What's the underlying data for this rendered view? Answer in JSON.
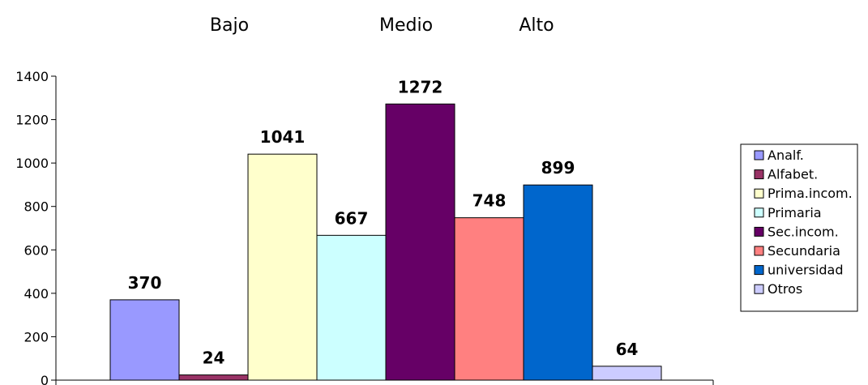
{
  "chart_data": {
    "type": "bar",
    "group_labels": [
      "Bajo",
      "Medio",
      "Alto"
    ],
    "series": [
      {
        "name": "Analf.",
        "value": 370,
        "color": "#9999ff"
      },
      {
        "name": "Alfabet.",
        "value": 24,
        "color": "#993366"
      },
      {
        "name": "Prima.incom.",
        "value": 1041,
        "color": "#ffffcc"
      },
      {
        "name": "Primaria",
        "value": 667,
        "color": "#ccffff"
      },
      {
        "name": "Sec.incom.",
        "value": 1272,
        "color": "#660066"
      },
      {
        "name": "Secundaria",
        "value": 748,
        "color": "#ff8080"
      },
      {
        "name": "universidad",
        "value": 899,
        "color": "#0066cc"
      },
      {
        "name": "Otros",
        "value": 64,
        "color": "#ccccff"
      }
    ],
    "y_ticks": [
      "0",
      "200",
      "400",
      "600",
      "800",
      "1000",
      "1200",
      "1400"
    ],
    "ylim": [
      0,
      1400
    ],
    "grid": false,
    "legend_position": "right"
  }
}
